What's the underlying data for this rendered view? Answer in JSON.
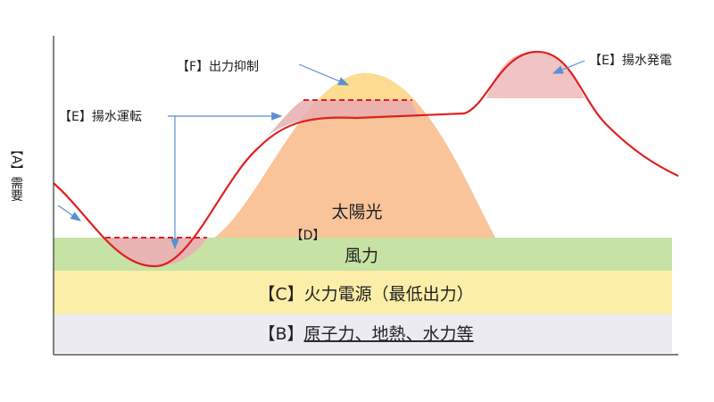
{
  "labels": {
    "curtailment": "【F】出力抑制",
    "pumped_generation": "【E】揚水発電",
    "pumped_operation": "【E】揚水運転",
    "demand": "【A】需要",
    "solar": "太陽光",
    "solar_tag": "【D】",
    "wind": "風力",
    "thermal": "【C】火力電源（最低出力）",
    "base_tag": "【B】",
    "base": "原子力、地熱、水力等"
  }
}
